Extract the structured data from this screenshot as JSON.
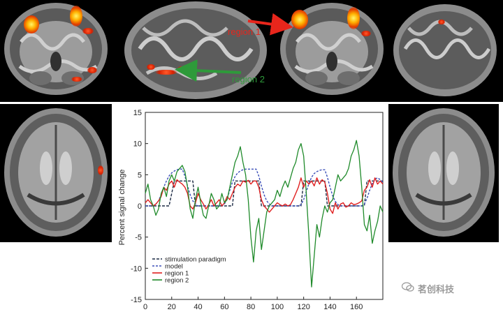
{
  "figure": {
    "callouts": [
      {
        "text": "region 1",
        "color": "#e8261c"
      },
      {
        "text": "region 2",
        "color": "#2e9a3a"
      }
    ],
    "watermark": "茗创科技"
  },
  "chart_data": {
    "type": "line",
    "ylabel": "Percent signal change",
    "xlim": [
      0,
      180
    ],
    "ylim": [
      -15,
      15
    ],
    "xticks": [
      0,
      20,
      40,
      60,
      80,
      100,
      120,
      140,
      160
    ],
    "yticks": [
      15,
      10,
      5,
      0,
      -5,
      -10,
      -15
    ],
    "grid": false,
    "legend_position": "bottom-left",
    "x": [
      0,
      2,
      4,
      6,
      8,
      10,
      12,
      14,
      16,
      18,
      20,
      22,
      24,
      26,
      28,
      30,
      32,
      34,
      36,
      38,
      40,
      42,
      44,
      46,
      48,
      50,
      52,
      54,
      56,
      58,
      60,
      62,
      64,
      66,
      68,
      70,
      72,
      74,
      76,
      78,
      80,
      82,
      84,
      86,
      88,
      90,
      92,
      94,
      96,
      98,
      100,
      102,
      104,
      106,
      108,
      110,
      112,
      114,
      116,
      118,
      120,
      122,
      124,
      126,
      128,
      130,
      132,
      134,
      136,
      138,
      140,
      142,
      144,
      146,
      148,
      150,
      152,
      154,
      156,
      158,
      160,
      162,
      164,
      166,
      168,
      170,
      172,
      174,
      176,
      178,
      180
    ],
    "series": [
      {
        "name": "stimulation paradigm",
        "color": "#1c2a44",
        "dash": "4,2",
        "values": [
          0,
          0,
          0,
          0,
          0,
          0,
          0,
          0,
          0,
          0,
          2,
          4,
          4,
          4,
          4,
          4,
          4,
          4,
          4,
          0,
          0,
          0,
          0,
          0,
          0,
          0,
          0,
          0,
          0,
          0,
          0,
          0,
          0,
          0,
          4,
          4,
          4,
          4,
          4,
          4,
          4,
          4,
          4,
          4,
          0,
          0,
          0,
          0,
          0,
          0,
          0,
          0,
          0,
          0,
          0,
          0,
          0,
          0,
          0,
          0,
          4,
          4,
          4,
          4,
          4,
          4,
          4,
          4,
          4,
          0,
          0,
          0,
          0,
          0,
          0,
          0,
          0,
          0,
          0,
          0,
          0,
          0,
          0,
          0,
          4,
          4,
          4,
          4,
          4,
          4,
          4
        ]
      },
      {
        "name": "model",
        "color": "#3b4fb8",
        "dash": "3,2",
        "values": [
          0,
          0,
          0,
          0,
          0.3,
          0.8,
          1.8,
          3,
          4,
          4.8,
          5.3,
          5.6,
          5.8,
          5.9,
          5.9,
          4.8,
          3.2,
          1.8,
          0.8,
          0.3,
          0,
          0,
          0,
          0,
          0,
          0,
          0,
          0,
          0,
          0,
          0.3,
          1.2,
          2.5,
          3.8,
          4.7,
          5.3,
          5.6,
          5.8,
          5.9,
          5.9,
          5.9,
          5.9,
          5.9,
          4.8,
          3.2,
          1.8,
          0.8,
          0.3,
          0,
          0,
          0,
          0,
          0,
          0,
          0,
          0,
          0,
          0,
          0,
          0.2,
          1,
          2.3,
          3.6,
          4.6,
          5.2,
          5.5,
          5.7,
          5.8,
          5.8,
          4.6,
          3,
          1.6,
          0.7,
          0.2,
          0,
          0,
          0,
          0,
          0,
          0,
          0,
          0,
          0,
          0.3,
          1.2,
          2.5,
          3.6,
          4.3,
          4.5,
          4.2,
          3.8
        ]
      },
      {
        "name": "region 1",
        "color": "#e02020",
        "dash": "",
        "values": [
          0.5,
          1,
          0.5,
          0,
          0.3,
          0.8,
          1.5,
          3,
          2.5,
          3.5,
          4,
          3,
          4.2,
          3.8,
          3.5,
          3,
          2,
          0,
          -0.5,
          0.5,
          2,
          1,
          0.3,
          -0.5,
          0.2,
          1,
          0,
          0.5,
          1,
          0,
          0.5,
          1.5,
          1,
          2,
          3,
          3.5,
          3.2,
          4,
          3.8,
          4.1,
          3.5,
          4,
          4,
          3,
          1,
          0,
          -0.5,
          -1,
          -0.5,
          0,
          0.5,
          0.2,
          0,
          0.3,
          0,
          0.2,
          1,
          2,
          3,
          4.5,
          3,
          4,
          3.5,
          4,
          3.2,
          4.5,
          3.5,
          4.2,
          3.8,
          2,
          -0.5,
          -1.2,
          0.5,
          -0.5,
          0.3,
          0.5,
          -0.2,
          0,
          0.5,
          0.2,
          0.3,
          0.5,
          0.8,
          2.5,
          3,
          4.2,
          3,
          4.5,
          3.5,
          4,
          3.5
        ]
      },
      {
        "name": "region 2",
        "color": "#1f8a2a",
        "dash": "",
        "values": [
          2,
          3.5,
          1,
          0,
          -1.5,
          -0.5,
          2,
          3,
          1.5,
          4,
          5,
          4,
          5.5,
          6,
          6.5,
          5.5,
          3,
          -0.5,
          -2,
          1,
          3,
          0.5,
          -1.5,
          -2,
          0,
          2,
          1,
          -0.5,
          0,
          2,
          0.5,
          1,
          3,
          5,
          7,
          8,
          9.5,
          7,
          5,
          1,
          -5,
          -9,
          -4,
          -2,
          -7,
          -4,
          -1,
          0,
          0.5,
          1,
          2.5,
          1.5,
          3,
          4,
          3,
          4.5,
          6,
          7,
          9,
          10,
          8,
          2,
          -5,
          -13,
          -8,
          -3,
          -5,
          -2,
          0,
          -1,
          0.5,
          1,
          3,
          5,
          4,
          4.5,
          5,
          6,
          8,
          9,
          10.5,
          8,
          3,
          -3,
          -4,
          -1.5,
          -6,
          -4,
          -2.5,
          0,
          -1
        ]
      }
    ]
  }
}
